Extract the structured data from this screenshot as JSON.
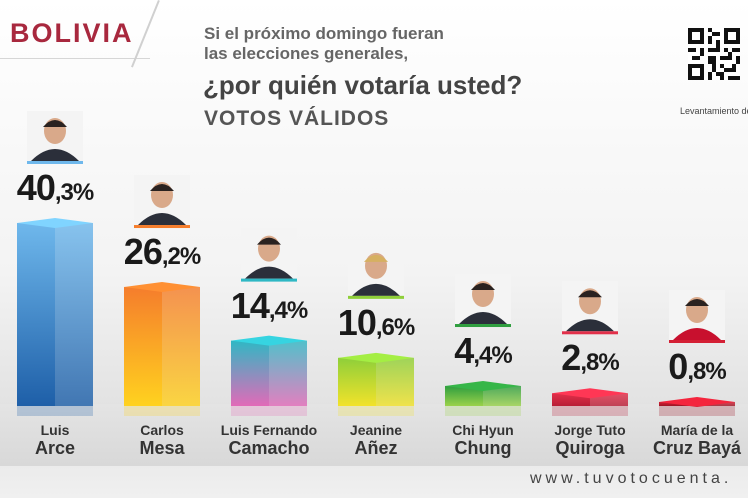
{
  "header": {
    "country": "BOLIVIA",
    "question_line1": "Si el próximo domingo fueran",
    "question_line2": "las elecciones generales,",
    "question_line3": "¿por quién votaría usted?",
    "subtitle": "VOTOS VÁLIDOS",
    "fieldwork_label": "Levantamiento de",
    "website": "www.tuvotocuenta."
  },
  "chart_data": {
    "type": "bar",
    "title": "¿por quién votaría usted?",
    "subtitle": "VOTOS VÁLIDOS",
    "categories": [
      "Luis Arce",
      "Carlos Mesa",
      "Luis Fernando Camacho",
      "Jeanine Añez",
      "Chi Hyun Chung",
      "Jorge Tuto Quiroga",
      "María de la Cruz Bayá"
    ],
    "values": [
      40.3,
      26.2,
      14.4,
      10.6,
      4.4,
      2.8,
      0.8
    ],
    "ylim": [
      0,
      45
    ],
    "grid": false,
    "legend": "none",
    "candidates": [
      {
        "line1": "Luis",
        "line2": "Arce",
        "pct_int": "40",
        "pct_dec": ",3%",
        "color_top": "#6fb8ec",
        "color_bottom": "#1e5fa8"
      },
      {
        "line1": "Carlos",
        "line2": "Mesa",
        "pct_int": "26",
        "pct_dec": ",2%",
        "color_top": "#f57d2c",
        "color_bottom": "#ffd21f"
      },
      {
        "line1": "Luis Fernando",
        "line2": "Camacho",
        "pct_int": "14",
        "pct_dec": ",4%",
        "color_top": "#2fb8c4",
        "color_bottom": "#e26ab8"
      },
      {
        "line1": "Jeanine",
        "line2": "Añez",
        "pct_int": "10",
        "pct_dec": ",6%",
        "color_top": "#8fcf3a",
        "color_bottom": "#f2e22a"
      },
      {
        "line1": "Chi Hyun",
        "line2": "Chung",
        "pct_int": "4",
        "pct_dec": ",4%",
        "color_top": "#2f9e3f",
        "color_bottom": "#9ad24a"
      },
      {
        "line1": "Jorge Tuto",
        "line2": "Quiroga",
        "pct_int": "2",
        "pct_dec": ",8%",
        "color_top": "#e2304a",
        "color_bottom": "#b81d36"
      },
      {
        "line1": "María de la",
        "line2": "Cruz Bayá",
        "pct_int": "0",
        "pct_dec": ",8%",
        "color_top": "#d42035",
        "color_bottom": "#9c1424"
      }
    ]
  }
}
